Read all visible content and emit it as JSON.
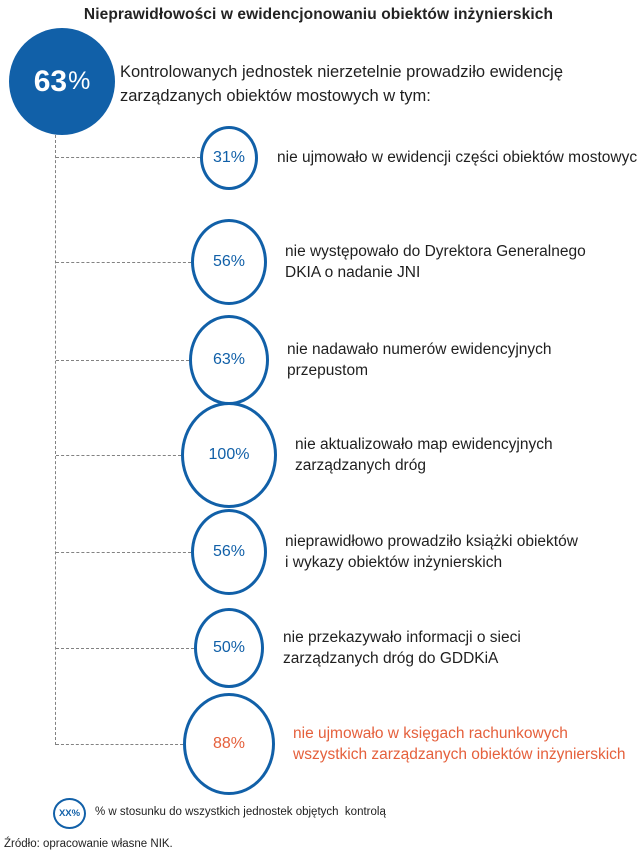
{
  "title": "Nieprawidłowości w ewidencjonowaniu obiektów inżynierskich",
  "hero": {
    "value": "63",
    "percent_sign": "%",
    "description_lines": [
      "Kontrolowanych jednostek nierzetelnie prowadziło ewidencję",
      "zarządzanych obiektów mostowych w tym:"
    ]
  },
  "items": [
    {
      "value": "31%",
      "lines": [
        "nie ujmowało w ewidencji części obiektów mostowych"
      ],
      "highlight": false
    },
    {
      "value": "56%",
      "lines": [
        "nie występowało do Dyrektora Generalnego",
        "DKIA o nadanie JNI"
      ],
      "highlight": false
    },
    {
      "value": "63%",
      "lines": [
        "nie nadawało numerów ewidencyjnych",
        "przepustom"
      ],
      "highlight": false
    },
    {
      "value": "100%",
      "lines": [
        "nie aktualizowało map ewidencyjnych",
        "zarządzanych dróg"
      ],
      "highlight": false
    },
    {
      "value": "56%",
      "lines": [
        "nieprawidłowo prowadziło książki obiektów",
        "i wykazy obiektów inżynierskich"
      ],
      "highlight": false
    },
    {
      "value": "50%",
      "lines": [
        "nie przekazywało informacji o sieci",
        "zarządzanych dróg do GDDKiA"
      ],
      "highlight": false
    },
    {
      "value": "88%",
      "lines": [
        "nie ujmowało w księgach rachunkowych",
        "wszystkich zarządzanych obiektów inżynierskich"
      ],
      "highlight": true
    }
  ],
  "legend": {
    "symbol": "XX%",
    "label": "% w stosunku do wszystkich jednostek objętych  kontrolą"
  },
  "source": "Źródło: opracowanie własne NIK.",
  "colors": {
    "blue": "#1160A8",
    "orange": "#E5603C"
  },
  "chart_data": {
    "type": "bar",
    "variant": "proportional-circle-infographic",
    "title": "Nieprawidłowości w ewidencjonowaniu obiektów inżynierskich",
    "main_value": {
      "value": 63,
      "unit": "%",
      "label": "Kontrolowanych jednostek nierzetelnie prowadziło ewidencję zarządzanych obiektów mostowych w tym:"
    },
    "categories": [
      "nie ujmowało w ewidencji części obiektów mostowych",
      "nie występowało do Dyrektora Generalnego DKIA o nadanie JNI",
      "nie nadawało numerów ewidencyjnych przepustom",
      "nie aktualizowało map ewidencyjnych zarządzanych dróg",
      "nieprawidłowo prowadziło książki obiektów i wykazy obiektów inżynierskich",
      "nie przekazywało informacji o sieci zarządzanych dróg do GDDKiA",
      "nie ujmowało w księgach rachunkowych wszystkich zarządzanych obiektów inżynierskich"
    ],
    "values": [
      31,
      56,
      63,
      100,
      56,
      50,
      88
    ],
    "unit": "%",
    "highlighted_category_index": 6,
    "note": "% w stosunku do wszystkich jednostek objętych kontrolą",
    "source": "Źródło: opracowanie własne NIK.",
    "legend_position": "bottom",
    "grid": false
  }
}
